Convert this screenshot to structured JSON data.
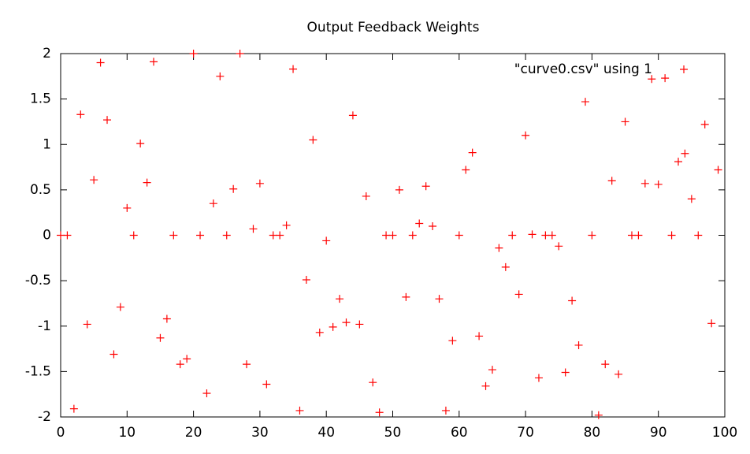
{
  "chart_data": {
    "type": "scatter",
    "title": "Output Feedback Weights",
    "x": [
      0,
      1,
      2,
      3,
      4,
      5,
      6,
      7,
      8,
      9,
      10,
      11,
      12,
      13,
      14,
      15,
      16,
      17,
      18,
      19,
      20,
      21,
      22,
      23,
      24,
      25,
      26,
      27,
      28,
      29,
      30,
      31,
      32,
      33,
      34,
      35,
      36,
      37,
      38,
      39,
      40,
      41,
      42,
      43,
      44,
      45,
      46,
      47,
      48,
      49,
      50,
      51,
      52,
      53,
      54,
      55,
      56,
      57,
      58,
      59,
      60,
      61,
      62,
      63,
      64,
      65,
      66,
      67,
      68,
      69,
      70,
      71,
      72,
      73,
      74,
      75,
      76,
      77,
      78,
      79,
      80,
      81,
      82,
      83,
      84,
      85,
      86,
      87,
      88,
      89,
      90,
      91,
      92,
      93,
      94,
      95,
      96,
      97,
      98,
      99
    ],
    "series": [
      {
        "name": "\"curve0.csv\" using 1",
        "color": "#ff0000",
        "values": [
          0,
          0,
          -1.91,
          1.33,
          -0.98,
          0.61,
          1.9,
          1.27,
          -1.31,
          -0.79,
          0.3,
          0,
          1.01,
          0.58,
          1.91,
          -1.13,
          -0.92,
          0,
          -1.42,
          -1.36,
          2.0,
          0,
          -1.74,
          0.35,
          1.75,
          0,
          0.51,
          2.0,
          -1.42,
          0.07,
          0.57,
          -1.64,
          0,
          0,
          0.11,
          1.83,
          -1.93,
          -0.49,
          1.05,
          -1.07,
          -0.06,
          -1.01,
          -0.7,
          -0.96,
          1.32,
          -0.98,
          0.43,
          -1.62,
          -1.95,
          0,
          0,
          0.5,
          -0.68,
          0,
          0.13,
          0.54,
          0.1,
          -0.7,
          -1.93,
          -1.16,
          0,
          0.72,
          0.91,
          -1.11,
          -1.66,
          -1.48,
          -0.14,
          -0.35,
          0,
          -0.65,
          1.1,
          0.01,
          -1.57,
          0,
          0,
          -0.12,
          -1.51,
          -0.72,
          -1.21,
          1.47,
          0,
          -1.98,
          -1.42,
          0.6,
          -1.53,
          1.25,
          0,
          0,
          0.57,
          1.72,
          0.56,
          1.73,
          0,
          0.81,
          0.9,
          0.4,
          0,
          1.22,
          -0.97,
          0.72
        ]
      }
    ],
    "xlim": [
      0,
      100
    ],
    "xticks": [
      0,
      10,
      20,
      30,
      40,
      50,
      60,
      70,
      80,
      90,
      100
    ],
    "ylim": [
      -2,
      2
    ],
    "yticks": [
      -2,
      -1.5,
      -1,
      -0.5,
      0,
      0.5,
      1,
      1.5,
      2
    ],
    "legend": "top-right"
  }
}
